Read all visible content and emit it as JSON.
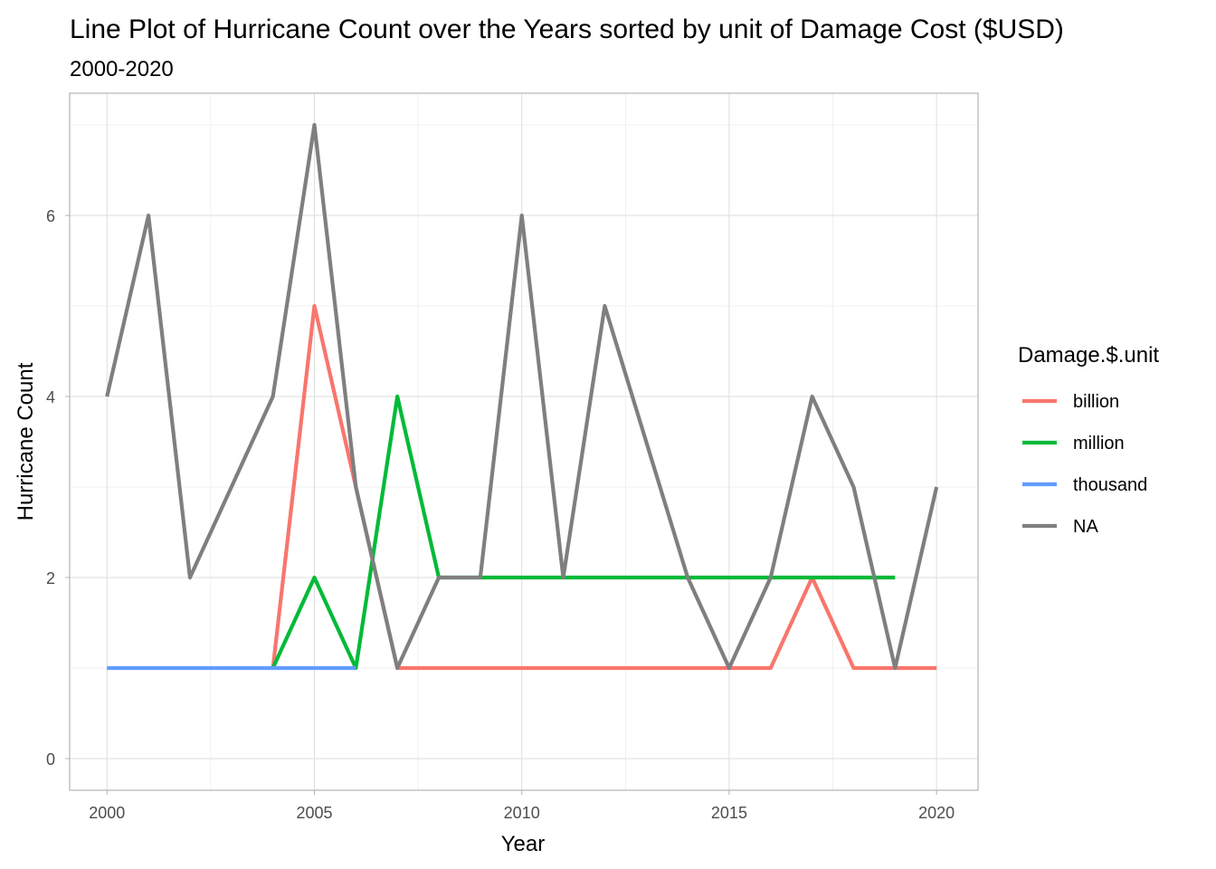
{
  "chart_data": {
    "type": "line",
    "title": "Line Plot of Hurricane Count over the Years sorted by unit of Damage Cost ($USD)",
    "subtitle": "2000-2020",
    "xlabel": "Year",
    "ylabel": "Hurricane Count",
    "xlim": [
      1999.1,
      2021.0
    ],
    "ylim": [
      -0.35,
      7.35
    ],
    "x_ticks": [
      2000,
      2005,
      2010,
      2015,
      2020
    ],
    "y_ticks": [
      0,
      2,
      4,
      6
    ],
    "grid": true,
    "legend": {
      "title": "Damage.$.unit",
      "position": "right"
    },
    "series": [
      {
        "name": "billion",
        "color": "#F8766D",
        "x": [
          2004,
          2005,
          2006,
          2007,
          2008,
          2009,
          2010,
          2011,
          2012,
          2013,
          2014,
          2015,
          2016,
          2017,
          2018,
          2019,
          2020
        ],
        "y": [
          1,
          5,
          3,
          1,
          1,
          1,
          1,
          1,
          1,
          1,
          1,
          1,
          1,
          2,
          1,
          1,
          1
        ]
      },
      {
        "name": "million",
        "color": "#00BA38",
        "x": [
          2004,
          2005,
          2006,
          2007,
          2008,
          2009,
          2010,
          2011,
          2012,
          2013,
          2014,
          2015,
          2016,
          2017,
          2018,
          2019
        ],
        "y": [
          1,
          2,
          1,
          4,
          2,
          2,
          2,
          2,
          2,
          2,
          2,
          2,
          2,
          2,
          2,
          2
        ]
      },
      {
        "name": "thousand",
        "color": "#619CFF",
        "x": [
          2000,
          2001,
          2002,
          2003,
          2004,
          2005,
          2006
        ],
        "y": [
          1,
          1,
          1,
          1,
          1,
          1,
          1
        ]
      },
      {
        "name": "NA",
        "color": "#7F7F7F",
        "x": [
          2000,
          2001,
          2002,
          2003,
          2004,
          2005,
          2006,
          2007,
          2008,
          2009,
          2010,
          2011,
          2012,
          2013,
          2014,
          2015,
          2016,
          2017,
          2018,
          2019,
          2020
        ],
        "y": [
          4,
          6,
          2,
          3,
          4,
          7,
          3,
          1,
          2,
          2,
          6,
          2,
          5,
          3.5,
          2,
          1,
          2,
          4,
          3,
          1,
          3
        ]
      }
    ]
  }
}
